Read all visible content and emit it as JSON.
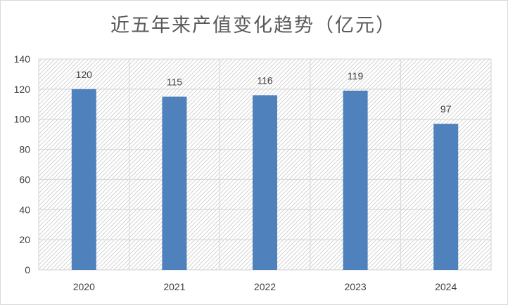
{
  "chart_data": {
    "type": "bar",
    "title": "近五年来产值变化趋势（亿元）",
    "categories": [
      "2020",
      "2021",
      "2022",
      "2023",
      "2024"
    ],
    "values": [
      120,
      115,
      116,
      119,
      97
    ],
    "xlabel": "",
    "ylabel": "",
    "ylim": [
      0,
      140
    ],
    "yticks": [
      0,
      20,
      40,
      60,
      80,
      100,
      120,
      140
    ],
    "grid": true,
    "legend": "none",
    "colors": {
      "bar": "#4f81bd",
      "grid": "#d9d9d9",
      "plot_hatch": "#c8c8c8"
    }
  }
}
